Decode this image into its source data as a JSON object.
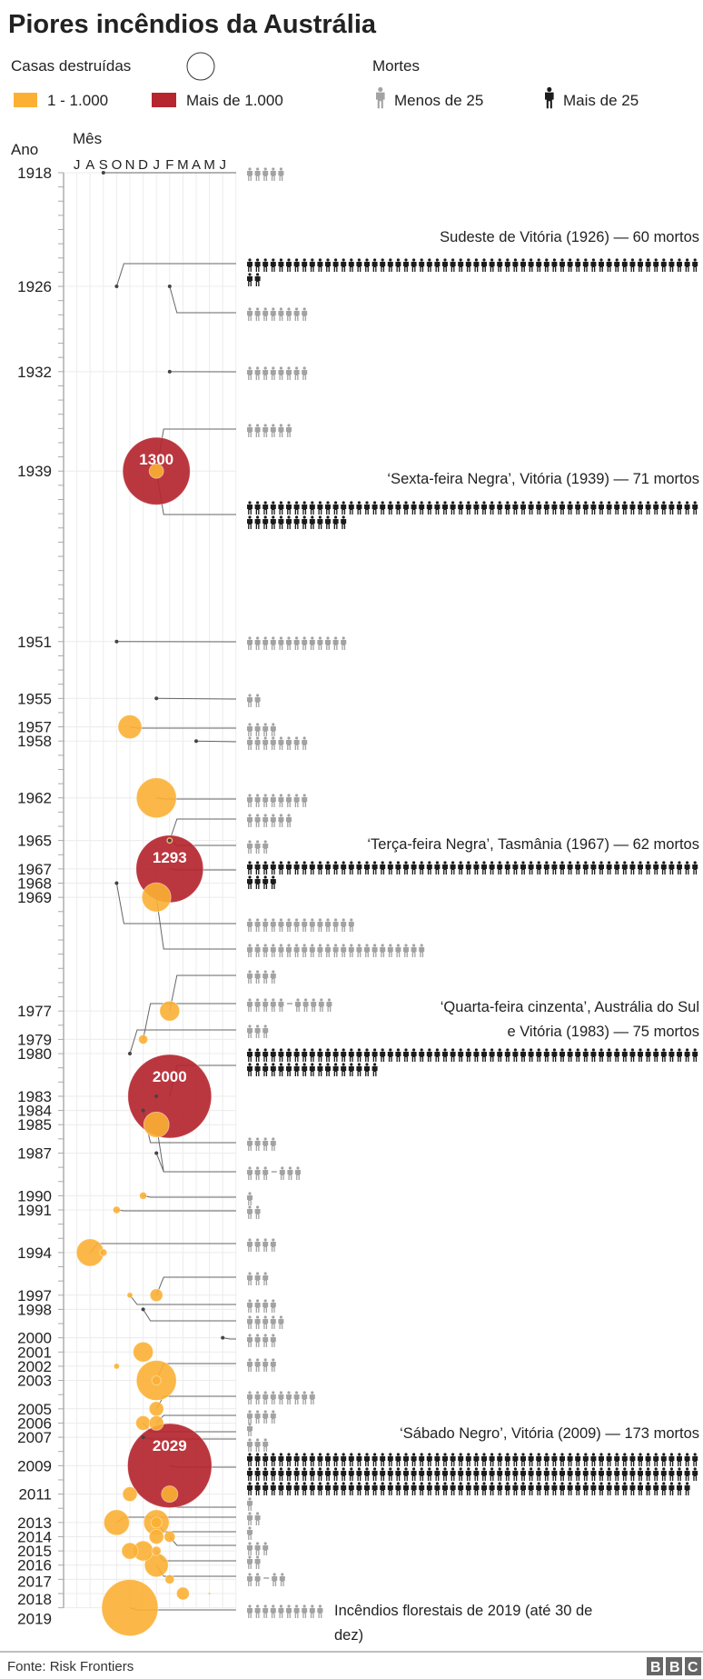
{
  "title": "Piores incêndios da Austrália",
  "legend": {
    "houses_label": "Casas destruídas",
    "house_small_label": "1 - 1.000",
    "house_large_label": "Mais de 1.000",
    "deaths_label": "Mortes",
    "deaths_small_label": "Menos de 25",
    "deaths_large_label": "Mais de 25"
  },
  "colors": {
    "houses_small": "#fbb034",
    "houses_large": "#b5262f",
    "deaths_small": "#a3a3a3",
    "deaths_large": "#1c1c1c",
    "no_houses_dot": "#444444"
  },
  "chart_data": {
    "type": "bubble-timeline",
    "y_axis_label": "Ano",
    "x_axis_label": "Mês",
    "month_letters": [
      "J",
      "A",
      "S",
      "O",
      "N",
      "D",
      "J",
      "F",
      "M",
      "A",
      "M",
      "J"
    ],
    "months_order": [
      "jul",
      "ago",
      "set",
      "out",
      "nov",
      "dez",
      "jan",
      "fev",
      "mar",
      "abr",
      "mai",
      "jun"
    ],
    "year_range": [
      1918,
      2019
    ],
    "year_labels": [
      "1918",
      "1926",
      "1932",
      "1939",
      "1951",
      "1955",
      "1957",
      "1958",
      "1962",
      "1965",
      "1967",
      "1968",
      "1969",
      "1977",
      "1979",
      "1980",
      "1983",
      "1984",
      "1985",
      "1987",
      "1990",
      "1991",
      "1994",
      "1997",
      "1998",
      "2000",
      "2001",
      "2002",
      "2003",
      "2005",
      "2006",
      "2007",
      "2009",
      "2011",
      "2013",
      "2014",
      "2015",
      "2016",
      "2017",
      "2018",
      "2019"
    ],
    "grid": true,
    "fires": [
      {
        "year": 1918,
        "month": "set",
        "houses": 0,
        "deaths": [
          5
        ]
      },
      {
        "year": 1926,
        "month": "out",
        "houses": 0,
        "deaths": [
          60
        ]
      },
      {
        "year": 1926,
        "month": "fev",
        "houses": 0,
        "deaths": [
          8
        ]
      },
      {
        "year": 1932,
        "month": "fev",
        "houses": 0,
        "deaths": [
          8
        ]
      },
      {
        "year": 1939,
        "month": "jan",
        "houses": 1300,
        "deaths": [
          71
        ],
        "label": "1300"
      },
      {
        "year": 1939,
        "month": "jan",
        "houses": 60,
        "deaths": [
          6
        ]
      },
      {
        "year": 1951,
        "month": "out",
        "houses": 0,
        "deaths": [
          13
        ]
      },
      {
        "year": 1955,
        "month": "jan",
        "houses": 0,
        "deaths": [
          2
        ]
      },
      {
        "year": 1957,
        "month": "nov",
        "houses": 160,
        "deaths": [
          4
        ]
      },
      {
        "year": 1958,
        "month": "abr",
        "houses": 0,
        "deaths": [
          8
        ]
      },
      {
        "year": 1962,
        "month": "jan",
        "houses": 457,
        "deaths": [
          8
        ]
      },
      {
        "year": 1965,
        "month": "fev",
        "houses": 9,
        "deaths": [
          6
        ]
      },
      {
        "year": 1965,
        "month": "fev",
        "houses": 0,
        "deaths": [
          3
        ]
      },
      {
        "year": 1967,
        "month": "fev",
        "houses": 1293,
        "deaths": [
          62
        ],
        "label": "1293"
      },
      {
        "year": 1968,
        "month": "out",
        "houses": 0,
        "deaths": [
          14
        ]
      },
      {
        "year": 1969,
        "month": "jan",
        "houses": 242,
        "deaths": [
          23
        ]
      },
      {
        "year": 1977,
        "month": "fev",
        "houses": 114,
        "deaths": [
          4
        ]
      },
      {
        "year": 1979,
        "month": "dez",
        "houses": 24,
        "deaths": [
          5,
          5
        ]
      },
      {
        "year": 1980,
        "month": "nov",
        "houses": 0,
        "deaths": [
          3
        ]
      },
      {
        "year": 1983,
        "month": "fev",
        "houses": 2000,
        "deaths": [
          75
        ],
        "label": "2000"
      },
      {
        "year": 1983,
        "month": "jan",
        "houses": 0,
        "deaths": []
      },
      {
        "year": 1984,
        "month": "dez",
        "houses": 0,
        "deaths": [
          4
        ]
      },
      {
        "year": 1985,
        "month": "jan",
        "houses": 185,
        "deaths": [
          3,
          3
        ]
      },
      {
        "year": 1987,
        "month": "jan",
        "houses": 0,
        "deaths": []
      },
      {
        "year": 1990,
        "month": "dez",
        "houses": 15,
        "deaths": [
          1
        ]
      },
      {
        "year": 1991,
        "month": "out",
        "houses": 15,
        "deaths": [
          2
        ]
      },
      {
        "year": 1994,
        "month": "ago",
        "houses": 213,
        "deaths": [
          4
        ]
      },
      {
        "year": 1994,
        "month": "set",
        "houses": 15,
        "deaths": []
      },
      {
        "year": 1997,
        "month": "nov",
        "houses": 9,
        "deaths": [
          4
        ]
      },
      {
        "year": 1997,
        "month": "jan",
        "houses": 46,
        "deaths": [
          3
        ]
      },
      {
        "year": 1998,
        "month": "dez",
        "houses": 0,
        "deaths": [
          5
        ]
      },
      {
        "year": 2000,
        "month": "jun",
        "houses": 0,
        "deaths": [
          4
        ]
      },
      {
        "year": 2001,
        "month": "dez",
        "houses": 114,
        "deaths": []
      },
      {
        "year": 2002,
        "month": "out",
        "houses": 9,
        "deaths": []
      },
      {
        "year": 2003,
        "month": "jan",
        "houses": 457,
        "deaths": [
          4
        ]
      },
      {
        "year": 2003,
        "month": "jan",
        "houses": 24,
        "deaths": []
      },
      {
        "year": 2005,
        "month": "jan",
        "houses": 60,
        "deaths": [
          9
        ]
      },
      {
        "year": 2006,
        "month": "dez",
        "houses": 60,
        "deaths": [
          1
        ]
      },
      {
        "year": 2006,
        "month": "jan",
        "houses": 60,
        "deaths": [
          4
        ]
      },
      {
        "year": 2007,
        "month": "dez",
        "houses": 0,
        "deaths": [
          3
        ]
      },
      {
        "year": 2009,
        "month": "fev",
        "houses": 2029,
        "deaths": [
          173
        ],
        "label": "2029"
      },
      {
        "year": 2011,
        "month": "nov",
        "houses": 60,
        "deaths": []
      },
      {
        "year": 2011,
        "month": "fev",
        "houses": 77,
        "deaths": [
          1
        ]
      },
      {
        "year": 2013,
        "month": "out",
        "houses": 185,
        "deaths": [
          2
        ]
      },
      {
        "year": 2013,
        "month": "jan",
        "houses": 185,
        "deaths": [
          1
        ]
      },
      {
        "year": 2013,
        "month": "jan",
        "houses": 34,
        "deaths": []
      },
      {
        "year": 2014,
        "month": "fev",
        "houses": 34,
        "deaths": [
          3
        ]
      },
      {
        "year": 2014,
        "month": "jan",
        "houses": 60,
        "deaths": []
      },
      {
        "year": 2015,
        "month": "nov",
        "houses": 77,
        "deaths": []
      },
      {
        "year": 2015,
        "month": "dez",
        "houses": 114,
        "deaths": []
      },
      {
        "year": 2015,
        "month": "jan",
        "houses": 24,
        "deaths": [
          2
        ]
      },
      {
        "year": 2016,
        "month": "jan",
        "houses": 160,
        "deaths": [
          2,
          2
        ]
      },
      {
        "year": 2017,
        "month": "fev",
        "houses": 24,
        "deaths": []
      },
      {
        "year": 2018,
        "month": "mar",
        "houses": 46,
        "deaths": []
      },
      {
        "year": 2018,
        "month": "mai",
        "houses": 1,
        "deaths": []
      },
      {
        "year": 2019,
        "month": "nov",
        "houses": 908,
        "deaths": [
          10
        ]
      }
    ],
    "annotations": [
      {
        "lines": [
          "Sudeste de Vitória (1926) — 60 mortos"
        ]
      },
      {
        "lines": [
          "‘Sexta-feira Negra’, Vitória (1939) — 71 mortos"
        ]
      },
      {
        "lines": [
          "‘Terça-feira Negra’, Tasmânia (1967) — 62 mortos"
        ]
      },
      {
        "lines": [
          "‘Quarta-feira cinzenta’, Austrália do Sul",
          "e Vitória (1983) — 75 mortos"
        ]
      },
      {
        "lines": [
          "‘Sábado Negro’, Vitória (2009) — 173 mortos"
        ]
      },
      {
        "lines": [
          "Incêndios florestais de 2019 (até 30 de",
          "dez)"
        ]
      }
    ]
  },
  "footer": {
    "source": "Fonte: Risk Frontiers",
    "logo": [
      "B",
      "B",
      "C"
    ]
  }
}
